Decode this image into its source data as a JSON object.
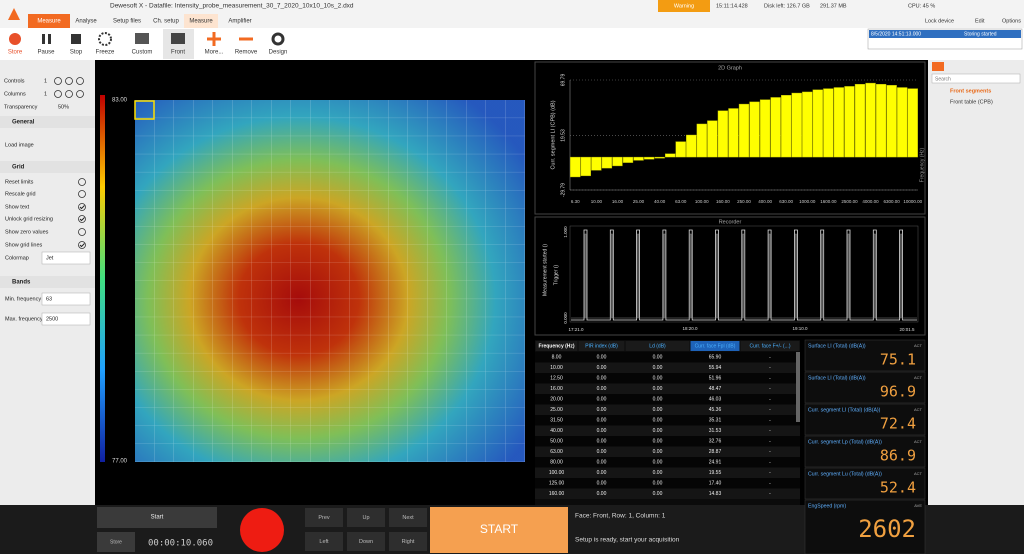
{
  "app_bar": {
    "logo_tab": "Measure",
    "title": "Dewesoft X - Datafile: Intensity_probe_measurement_30_7_2020_10x10_10s_2.dxd",
    "tabs": [
      "Analyse",
      "Setup files",
      "Ch. setup",
      "Measure",
      "Amplifier"
    ],
    "status": {
      "warning": "Warning",
      "time": "15:11:14.428",
      "disk": "Disk left: 126.7 GB",
      "memory": "291.37 MB",
      "cpu": "CPU: 45 %"
    },
    "actions": [
      "Lock device",
      "Edit",
      "Options"
    ]
  },
  "toolbar": {
    "buttons": [
      "Store",
      "Pause",
      "Stop",
      "Freeze",
      "Custom",
      "Front",
      "More...",
      "Remove",
      "Design"
    ],
    "log": {
      "time": "8/5/2020 14:51:13.000",
      "message": "Storing started"
    }
  },
  "left_panel": {
    "controls": {
      "label": "Controls",
      "value": "1"
    },
    "columns": {
      "label": "Columns",
      "value": "1"
    },
    "transparency": {
      "label": "Transparency",
      "value": "50%"
    },
    "general": {
      "title": "General",
      "items": [
        "Load image"
      ]
    },
    "grid": {
      "title": "Grid",
      "items": [
        "Reset limits",
        "Rescale grid",
        "Show text",
        "Unlock grid resizing",
        "Show zero values",
        "Show grid lines"
      ],
      "colormap": {
        "label": "Colormap",
        "value": "Jet"
      }
    },
    "bands": {
      "title": "Bands",
      "min": {
        "label": "Min. frequency",
        "value": "63"
      },
      "max": {
        "label": "Max. frequency",
        "value": "2500"
      }
    }
  },
  "intensity_map": {
    "scale_max": "83.00",
    "scale_min": "77.00"
  },
  "graph_2d": {
    "type": "bar",
    "title": "2D Graph",
    "y_label": "Curr. segment LI (CPB) (dB)",
    "x_label": "Frequency (Hz)",
    "color": "#ffff00",
    "ylim": [
      -29.79,
      69.79
    ],
    "yticks": [
      -29.79,
      19.53,
      69.79
    ],
    "categories": [
      "6.30",
      null,
      "10.00",
      null,
      "16.00",
      null,
      "25.00",
      null,
      "40.00",
      null,
      "63.00",
      null,
      "100.00",
      null,
      "160.00",
      null,
      "250.00",
      null,
      "400.00",
      null,
      "630.00",
      null,
      "1000.00",
      null,
      "1600.00",
      null,
      "2500.00",
      null,
      "4000.00",
      null,
      "6300.00",
      null,
      "10000.00"
    ],
    "values": [
      -18,
      -17,
      -12,
      -10,
      -8,
      -5,
      -3,
      -2,
      -1,
      3,
      14,
      20,
      30,
      33,
      42,
      44,
      48,
      50,
      52,
      54,
      56,
      58,
      59,
      61,
      62,
      63,
      64,
      66,
      67,
      66,
      65,
      63,
      62
    ]
  },
  "recorder": {
    "title": "Recorder",
    "channels": [
      "Measurement started ()",
      "Trigger ()"
    ],
    "y_labels": [
      "1.000",
      "0.000"
    ],
    "x_labels": [
      "17:21.0",
      "18:20.0",
      "19:10.0",
      "20:01.5"
    ]
  },
  "table": {
    "columns": [
      "Frequency (Hz)",
      "PIR index (dB)",
      "Ld (dB)",
      "Curr. face Fpl (dB)",
      "Curr. face F+/- (...)"
    ],
    "rows": [
      [
        "8.00",
        "0.00",
        "0.00",
        "65.90",
        "-"
      ],
      [
        "10.00",
        "0.00",
        "0.00",
        "55.94",
        "-"
      ],
      [
        "12.50",
        "0.00",
        "0.00",
        "51.96",
        "-"
      ],
      [
        "16.00",
        "0.00",
        "0.00",
        "48.47",
        "-"
      ],
      [
        "20.00",
        "0.00",
        "0.00",
        "46.03",
        "-"
      ],
      [
        "25.00",
        "0.00",
        "0.00",
        "45.36",
        "-"
      ],
      [
        "31.50",
        "0.00",
        "0.00",
        "35.31",
        "-"
      ],
      [
        "40.00",
        "0.00",
        "0.00",
        "31.53",
        "-"
      ],
      [
        "50.00",
        "0.00",
        "0.00",
        "32.76",
        "-"
      ],
      [
        "63.00",
        "0.00",
        "0.00",
        "28.87",
        "-"
      ],
      [
        "80.00",
        "0.00",
        "0.00",
        "24.91",
        "-"
      ],
      [
        "100.00",
        "0.00",
        "0.00",
        "19.55",
        "-"
      ],
      [
        "125.00",
        "0.00",
        "0.00",
        "17.40",
        "-"
      ],
      [
        "160.00",
        "0.00",
        "0.00",
        "14.83",
        "-"
      ]
    ]
  },
  "displays": [
    {
      "label": "Surface LI (Total) (dB(A))",
      "tag": "ACT",
      "value": "75.1"
    },
    {
      "label": "Surface LI (Total) (dB(A))",
      "tag": "ACT",
      "value": "96.9"
    },
    {
      "label": "Curr. segment LI (Total) (dB(A))",
      "tag": "ACT",
      "value": "72.4"
    },
    {
      "label": "Curr. segment Lp (Total) (dB(A))",
      "tag": "ACT",
      "value": "86.9"
    },
    {
      "label": "Curr. segment Lu (Total) (dB(A))",
      "tag": "ACT",
      "value": "52.4"
    },
    {
      "label": "EngSpeed (rpm)",
      "tag": "AVE",
      "value": "2602"
    }
  ],
  "right_panel": {
    "search": "Search",
    "items": [
      "Front segments",
      "Front table (CPB)"
    ]
  },
  "controls": {
    "start": "Start",
    "store": "Store",
    "timer": "00:00:10.060",
    "nav": [
      "Prev",
      "Up",
      "Next",
      "Left",
      "Down",
      "Right"
    ],
    "start_big": "START",
    "status": "Face: Front, Row: 1, Column: 1",
    "message": "Setup is ready, start your acquisition"
  }
}
